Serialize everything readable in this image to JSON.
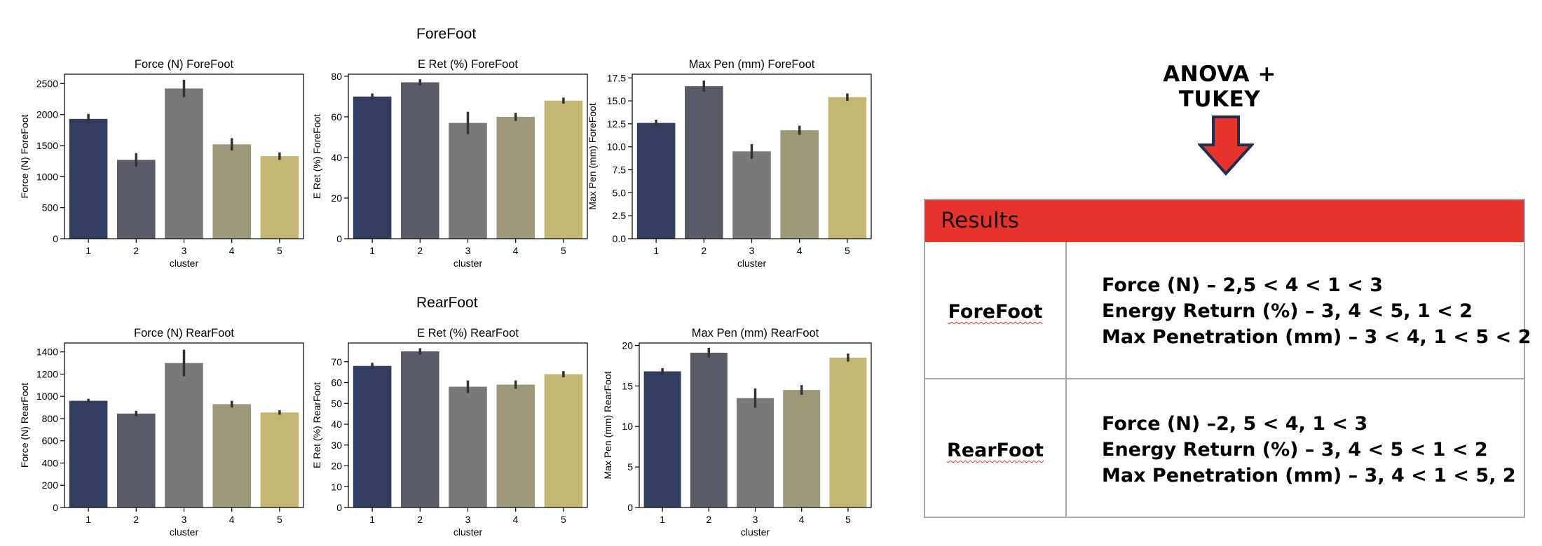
{
  "figure": {
    "group_titles": [
      "ForeFoot",
      "RearFoot"
    ]
  },
  "chart_data": [
    {
      "type": "bar",
      "title": "Force (N) ForeFoot",
      "xlabel": "cluster",
      "ylabel": "Force (N) ForeFoot",
      "categories": [
        "1",
        "2",
        "3",
        "4",
        "5"
      ],
      "values": [
        1930,
        1270,
        2420,
        1520,
        1330
      ],
      "errors": [
        80,
        110,
        140,
        100,
        60
      ],
      "ylim": [
        0,
        2650
      ],
      "yticks": [
        0,
        500,
        1000,
        1500,
        2000,
        2500
      ],
      "tick_decimals": 0
    },
    {
      "type": "bar",
      "title": "E Ret (%) ForeFoot",
      "xlabel": "cluster",
      "ylabel": "E Ret (%) ForeFoot",
      "categories": [
        "1",
        "2",
        "3",
        "4",
        "5"
      ],
      "values": [
        70,
        77,
        57,
        60,
        68
      ],
      "errors": [
        1.5,
        1.5,
        5.5,
        2.0,
        1.5
      ],
      "ylim": [
        0,
        81
      ],
      "yticks": [
        0,
        20,
        40,
        60,
        80
      ],
      "tick_decimals": 0
    },
    {
      "type": "bar",
      "title": "Max Pen (mm) ForeFoot",
      "xlabel": "cluster",
      "ylabel": "Max Pen (mm) ForeFoot",
      "categories": [
        "1",
        "2",
        "3",
        "4",
        "5"
      ],
      "values": [
        12.6,
        16.6,
        9.5,
        11.8,
        15.4
      ],
      "errors": [
        0.35,
        0.6,
        0.8,
        0.5,
        0.4
      ],
      "ylim": [
        0,
        17.9
      ],
      "yticks": [
        0,
        2.5,
        5,
        7.5,
        10,
        12.5,
        15,
        17.5
      ],
      "tick_decimals": 1
    },
    {
      "type": "bar",
      "title": "Force (N) RearFoot",
      "xlabel": "cluster",
      "ylabel": "Force (N) RearFoot",
      "categories": [
        "1",
        "2",
        "3",
        "4",
        "5"
      ],
      "values": [
        960,
        845,
        1300,
        930,
        855
      ],
      "errors": [
        18,
        25,
        120,
        30,
        20
      ],
      "ylim": [
        0,
        1480
      ],
      "yticks": [
        0,
        200,
        400,
        600,
        800,
        1000,
        1200,
        1400
      ],
      "tick_decimals": 0
    },
    {
      "type": "bar",
      "title": "E Ret (%) RearFoot",
      "xlabel": "cluster",
      "ylabel": "E Ret (%) RearFoot",
      "categories": [
        "1",
        "2",
        "3",
        "4",
        "5"
      ],
      "values": [
        68,
        75,
        58,
        59,
        64
      ],
      "errors": [
        1.5,
        1.5,
        3.0,
        2.0,
        1.5
      ],
      "ylim": [
        0,
        79
      ],
      "yticks": [
        0,
        10,
        20,
        30,
        40,
        50,
        60,
        70
      ],
      "tick_decimals": 0
    },
    {
      "type": "bar",
      "title": "Max Pen (mm) RearFoot",
      "xlabel": "cluster",
      "ylabel": "Max Pen (mm) RearFoot",
      "categories": [
        "1",
        "2",
        "3",
        "4",
        "5"
      ],
      "values": [
        16.8,
        19.1,
        13.5,
        14.5,
        18.5
      ],
      "errors": [
        0.4,
        0.6,
        1.2,
        0.6,
        0.5
      ],
      "ylim": [
        0,
        20.3
      ],
      "yticks": [
        0,
        5,
        10,
        15,
        20
      ],
      "tick_decimals": 0
    }
  ],
  "colors": {
    "bars": [
      "#323e5f",
      "#5a5b68",
      "#7b7977",
      "#9e987a",
      "#c4b673"
    ],
    "error_bar": "#333333",
    "header_red": "#e8332a",
    "arrow_red": "#e8332a",
    "arrow_outline": "#1f2d4e"
  },
  "panel": {
    "anova_title": "ANOVA + TUKEY",
    "arrow_icon": "down-arrow-icon",
    "results_title": "Results",
    "rows": [
      {
        "label": "ForeFoot",
        "lines": [
          "Force (N) – 2,5 < 4 < 1 < 3",
          "Energy Return (%) – 3, 4 < 5, 1 < 2",
          "Max Penetration (mm) – 3 < 4, 1 < 5 < 2"
        ]
      },
      {
        "label": "RearFoot",
        "lines": [
          "Force (N) –2, 5 < 4, 1 < 3",
          "Energy Return (%) – 3, 4 < 5 < 1 < 2",
          "Max Penetration (mm) – 3, 4 < 1 < 5, 2"
        ]
      }
    ]
  }
}
